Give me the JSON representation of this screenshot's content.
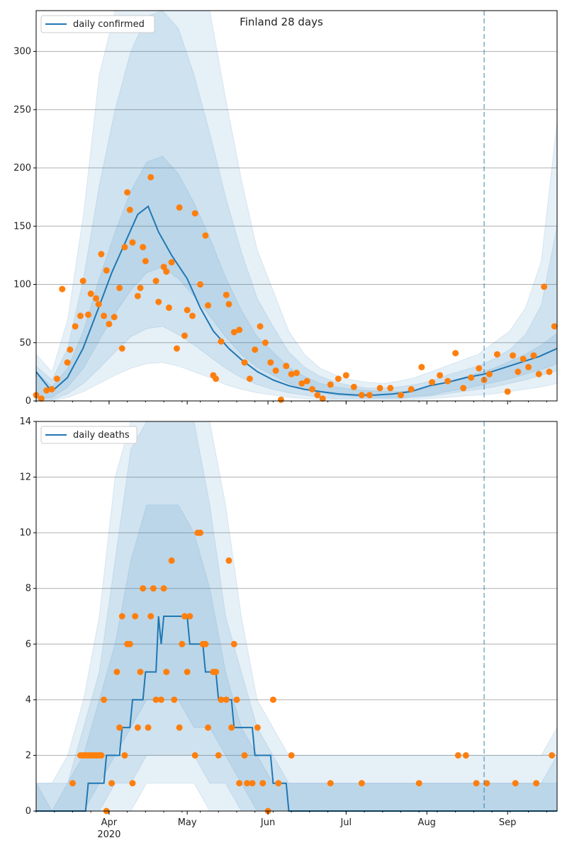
{
  "title": "Finland 28 days",
  "colors": {
    "line": "#1f77b4",
    "points": "#ff7f0e",
    "band": "#1f77b4",
    "grid": "#b0b0b0",
    "vline": "#1f77b4"
  },
  "chart_data": [
    {
      "type": "line",
      "title": "Finland 28 days",
      "legend": "daily confirmed",
      "legend_position": "top-left",
      "grid": "y",
      "xlim": [
        "2020-03-04",
        "2020-09-20"
      ],
      "ylim": [
        0,
        335
      ],
      "yticks": [
        0,
        50,
        100,
        150,
        200,
        250,
        300
      ],
      "forecast_start": "2020-08-23",
      "line": {
        "x": [
          "2020-03-04",
          "2020-03-10",
          "2020-03-16",
          "2020-03-22",
          "2020-03-28",
          "2020-04-02",
          "2020-04-07",
          "2020-04-12",
          "2020-04-16",
          "2020-04-20",
          "2020-04-25",
          "2020-05-01",
          "2020-05-06",
          "2020-05-11",
          "2020-05-17",
          "2020-05-22",
          "2020-05-28",
          "2020-06-03",
          "2020-06-09",
          "2020-06-15",
          "2020-06-21",
          "2020-06-28",
          "2020-07-05",
          "2020-07-12",
          "2020-07-19",
          "2020-07-26",
          "2020-08-02",
          "2020-08-09",
          "2020-08-16",
          "2020-08-23",
          "2020-08-30",
          "2020-09-06",
          "2020-09-13",
          "2020-09-20"
        ],
        "y": [
          25,
          8,
          20,
          45,
          80,
          110,
          135,
          160,
          167,
          145,
          125,
          105,
          80,
          60,
          45,
          35,
          25,
          18,
          13,
          10,
          8,
          6,
          5,
          5,
          6,
          8,
          13,
          16,
          20,
          23,
          28,
          33,
          38,
          45
        ]
      },
      "bands": [
        {
          "name": "outer",
          "upper": [
            40,
            25,
            70,
            160,
            280,
            380,
            450,
            500,
            500,
            480,
            420,
            340,
            260,
            190,
            130,
            95,
            60,
            40,
            28,
            22,
            18,
            16,
            15,
            17,
            20,
            25,
            30,
            35,
            40,
            50,
            60,
            80,
            120,
            240
          ],
          "lower": [
            0,
            0,
            3,
            8,
            15,
            22,
            28,
            32,
            33,
            30,
            25,
            20,
            14,
            10,
            7,
            5,
            3,
            2,
            1,
            1,
            1,
            1,
            1,
            1,
            1,
            2,
            3,
            4,
            5,
            6,
            8,
            10,
            12,
            15
          ]
        },
        {
          "name": "middle",
          "upper": [
            30,
            18,
            45,
            105,
            185,
            250,
            300,
            330,
            335,
            320,
            280,
            230,
            175,
            128,
            88,
            64,
            42,
            29,
            21,
            16,
            13,
            11,
            11,
            12,
            14,
            17,
            22,
            26,
            30,
            36,
            44,
            57,
            82,
            150
          ],
          "lower": [
            1,
            1,
            6,
            15,
            28,
            42,
            55,
            62,
            64,
            57,
            48,
            38,
            28,
            20,
            14,
            10,
            7,
            5,
            3,
            2,
            2,
            2,
            2,
            2,
            3,
            4,
            6,
            8,
            10,
            12,
            15,
            18,
            22,
            26
          ]
        },
        {
          "name": "inner",
          "upper": [
            25,
            12,
            28,
            60,
            105,
            145,
            180,
            205,
            210,
            195,
            170,
            140,
            106,
            78,
            55,
            42,
            29,
            21,
            15,
            12,
            10,
            9,
            8,
            8,
            9,
            12,
            16,
            20,
            24,
            28,
            34,
            40,
            48,
            58
          ],
          "lower": [
            2,
            3,
            12,
            28,
            52,
            75,
            95,
            110,
            115,
            105,
            90,
            73,
            55,
            40,
            29,
            22,
            15,
            10,
            7,
            5,
            4,
            3,
            3,
            3,
            4,
            5,
            8,
            10,
            13,
            16,
            19,
            23,
            27,
            32
          ]
        }
      ],
      "points": {
        "x": [
          "2020-03-04",
          "2020-03-06",
          "2020-03-08",
          "2020-03-10",
          "2020-03-12",
          "2020-03-14",
          "2020-03-16",
          "2020-03-17",
          "2020-03-19",
          "2020-03-21",
          "2020-03-22",
          "2020-03-24",
          "2020-03-25",
          "2020-03-27",
          "2020-03-28",
          "2020-03-29",
          "2020-03-30",
          "2020-03-31",
          "2020-04-01",
          "2020-04-03",
          "2020-04-05",
          "2020-04-06",
          "2020-04-07",
          "2020-04-08",
          "2020-04-09",
          "2020-04-10",
          "2020-04-12",
          "2020-04-13",
          "2020-04-14",
          "2020-04-15",
          "2020-04-17",
          "2020-04-19",
          "2020-04-20",
          "2020-04-22",
          "2020-04-23",
          "2020-04-24",
          "2020-04-25",
          "2020-04-27",
          "2020-04-28",
          "2020-04-30",
          "2020-05-01",
          "2020-05-03",
          "2020-05-04",
          "2020-05-06",
          "2020-05-08",
          "2020-05-09",
          "2020-05-11",
          "2020-05-12",
          "2020-05-14",
          "2020-05-16",
          "2020-05-17",
          "2020-05-19",
          "2020-05-21",
          "2020-05-23",
          "2020-05-25",
          "2020-05-27",
          "2020-05-29",
          "2020-05-31",
          "2020-06-02",
          "2020-06-04",
          "2020-06-06",
          "2020-06-08",
          "2020-06-10",
          "2020-06-12",
          "2020-06-14",
          "2020-06-16",
          "2020-06-18",
          "2020-06-20",
          "2020-06-22",
          "2020-06-25",
          "2020-06-28",
          "2020-07-01",
          "2020-07-04",
          "2020-07-07",
          "2020-07-10",
          "2020-07-14",
          "2020-07-18",
          "2020-07-22",
          "2020-07-26",
          "2020-07-30",
          "2020-08-03",
          "2020-08-06",
          "2020-08-09",
          "2020-08-12",
          "2020-08-15",
          "2020-08-18",
          "2020-08-21",
          "2020-08-23",
          "2020-08-25",
          "2020-08-28",
          "2020-09-01",
          "2020-09-03",
          "2020-09-05",
          "2020-09-07",
          "2020-09-09",
          "2020-09-11",
          "2020-09-13",
          "2020-09-15",
          "2020-09-17",
          "2020-09-19"
        ],
        "y": [
          5,
          2,
          9,
          10,
          19,
          96,
          33,
          44,
          64,
          73,
          103,
          74,
          92,
          88,
          83,
          126,
          73,
          112,
          66,
          72,
          97,
          45,
          132,
          179,
          164,
          136,
          90,
          97,
          132,
          120,
          192,
          103,
          85,
          115,
          111,
          80,
          119,
          45,
          166,
          56,
          78,
          73,
          161,
          100,
          142,
          82,
          22,
          19,
          51,
          91,
          83,
          59,
          61,
          33,
          19,
          44,
          64,
          50,
          33,
          26,
          1,
          30,
          23,
          24,
          15,
          17,
          10,
          5,
          2,
          14,
          19,
          22,
          12,
          5,
          5,
          11,
          11,
          5,
          10,
          29,
          16,
          22,
          17,
          41,
          11,
          20,
          28,
          18,
          23,
          40,
          8,
          39,
          25,
          36,
          29,
          39,
          23,
          98,
          25,
          64
        ]
      }
    },
    {
      "type": "line",
      "legend": "daily deaths",
      "legend_position": "top-left",
      "grid": "y",
      "xlim": [
        "2020-03-04",
        "2020-09-20"
      ],
      "ylim": [
        0,
        14
      ],
      "yticks": [
        0,
        2,
        4,
        6,
        8,
        10,
        12,
        14
      ],
      "xticks": [
        "Apr",
        "May",
        "Jun",
        "Jul",
        "Aug",
        "Sep"
      ],
      "xtick_year": "2020",
      "forecast_start": "2020-08-23",
      "line": {
        "x": [
          "2020-03-04",
          "2020-03-23",
          "2020-03-24",
          "2020-03-30",
          "2020-03-31",
          "2020-04-05",
          "2020-04-06",
          "2020-04-09",
          "2020-04-10",
          "2020-04-14",
          "2020-04-15",
          "2020-04-19",
          "2020-04-20",
          "2020-04-21",
          "2020-04-22",
          "2020-05-01",
          "2020-05-02",
          "2020-05-07",
          "2020-05-08",
          "2020-05-12",
          "2020-05-13",
          "2020-05-18",
          "2020-05-19",
          "2020-05-26",
          "2020-05-27",
          "2020-06-02",
          "2020-06-03",
          "2020-06-08",
          "2020-06-09",
          "2020-08-23",
          "2020-09-20"
        ],
        "y": [
          0,
          0,
          1,
          1,
          2,
          2,
          3,
          3,
          4,
          4,
          5,
          5,
          7,
          6,
          7,
          7,
          6,
          6,
          5,
          5,
          4,
          4,
          3,
          3,
          2,
          2,
          1,
          1,
          0,
          0,
          0
        ]
      },
      "bands": [
        {
          "name": "outer",
          "upper": [
            1,
            1,
            2,
            4,
            7,
            12,
            18,
            22,
            22,
            22,
            20,
            16,
            11,
            7,
            4,
            3,
            2,
            2,
            2,
            2,
            2,
            2,
            2,
            2,
            2,
            2,
            2,
            2,
            2,
            2,
            2,
            2,
            2,
            3
          ],
          "lower": [
            0,
            0,
            0,
            0,
            0,
            0,
            0,
            1,
            1,
            1,
            1,
            0,
            0,
            0,
            0,
            0,
            0,
            0,
            0,
            0,
            0,
            0,
            0,
            0,
            0,
            0,
            0,
            0,
            0,
            0,
            0,
            0,
            0,
            0
          ]
        },
        {
          "name": "middle",
          "upper": [
            1,
            1,
            1,
            3,
            5,
            9,
            13,
            16,
            16,
            16,
            14,
            11,
            7,
            5,
            3,
            2,
            1,
            1,
            1,
            1,
            1,
            1,
            1,
            1,
            1,
            1,
            1,
            1,
            1,
            1,
            1,
            1,
            1,
            2
          ],
          "lower": [
            0,
            0,
            0,
            0,
            0,
            1,
            1,
            2,
            2,
            2,
            2,
            1,
            1,
            0,
            0,
            0,
            0,
            0,
            0,
            0,
            0,
            0,
            0,
            0,
            0,
            0,
            0,
            0,
            0,
            0,
            0,
            0,
            0,
            0
          ]
        },
        {
          "name": "inner",
          "upper": [
            1,
            0,
            1,
            2,
            4,
            6,
            9,
            11,
            11,
            11,
            10,
            8,
            5,
            3,
            2,
            1,
            1,
            1,
            1,
            1,
            1,
            1,
            1,
            1,
            1,
            1,
            1,
            1,
            1,
            1,
            1,
            1,
            1,
            1
          ],
          "lower": [
            0,
            0,
            0,
            0,
            1,
            2,
            3,
            4,
            4,
            4,
            3,
            3,
            2,
            1,
            0,
            0,
            0,
            0,
            0,
            0,
            0,
            0,
            0,
            0,
            0,
            0,
            0,
            0,
            0,
            0,
            0,
            0,
            0,
            0
          ]
        }
      ],
      "points": {
        "x": [
          "2020-03-18",
          "2020-03-21",
          "2020-03-22",
          "2020-03-23",
          "2020-03-24",
          "2020-03-25",
          "2020-03-26",
          "2020-03-27",
          "2020-03-28",
          "2020-03-29",
          "2020-03-30",
          "2020-03-31",
          "2020-04-02",
          "2020-04-04",
          "2020-04-05",
          "2020-04-06",
          "2020-04-07",
          "2020-04-08",
          "2020-04-09",
          "2020-04-10",
          "2020-04-11",
          "2020-04-12",
          "2020-04-13",
          "2020-04-14",
          "2020-04-16",
          "2020-04-17",
          "2020-04-18",
          "2020-04-19",
          "2020-04-21",
          "2020-04-22",
          "2020-04-23",
          "2020-04-25",
          "2020-04-26",
          "2020-04-28",
          "2020-04-29",
          "2020-04-30",
          "2020-05-01",
          "2020-05-02",
          "2020-05-04",
          "2020-05-05",
          "2020-05-06",
          "2020-05-07",
          "2020-05-08",
          "2020-05-09",
          "2020-05-11",
          "2020-05-12",
          "2020-05-13",
          "2020-05-14",
          "2020-05-16",
          "2020-05-17",
          "2020-05-18",
          "2020-05-19",
          "2020-05-20",
          "2020-05-21",
          "2020-05-23",
          "2020-05-24",
          "2020-05-26",
          "2020-05-28",
          "2020-05-30",
          "2020-06-01",
          "2020-06-03",
          "2020-06-05",
          "2020-06-10",
          "2020-06-25",
          "2020-07-07",
          "2020-07-29",
          "2020-08-13",
          "2020-08-16",
          "2020-08-20",
          "2020-08-24",
          "2020-09-04",
          "2020-09-12",
          "2020-09-18"
        ],
        "y": [
          1,
          2,
          2,
          2,
          2,
          2,
          2,
          2,
          2,
          2,
          4,
          0,
          1,
          5,
          3,
          7,
          2,
          6,
          6,
          1,
          7,
          3,
          5,
          8,
          3,
          7,
          8,
          4,
          4,
          8,
          5,
          9,
          4,
          3,
          6,
          7,
          5,
          7,
          2,
          10,
          10,
          6,
          6,
          3,
          5,
          5,
          2,
          4,
          4,
          9,
          3,
          6,
          4,
          1,
          2,
          1,
          1,
          3,
          1,
          0,
          4,
          1,
          2,
          1,
          1,
          1,
          2,
          2,
          1,
          1,
          1,
          1,
          2
        ]
      }
    }
  ]
}
